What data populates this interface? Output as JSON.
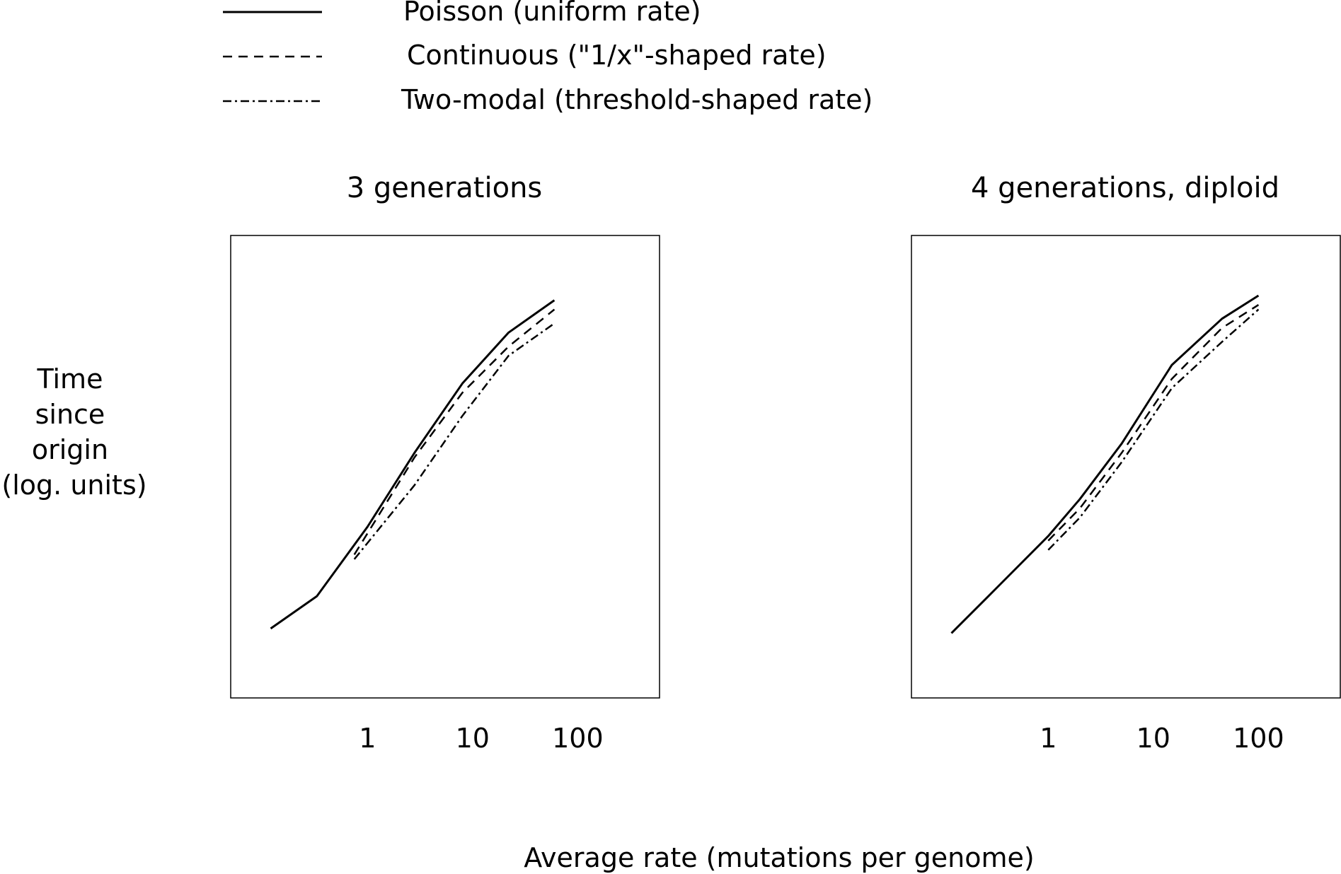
{
  "legend": [
    {
      "label": "Poisson (uniform rate)",
      "style": "solid"
    },
    {
      "label": "Continuous (\"1/x\"-shaped rate)",
      "style": "dashed"
    },
    {
      "label": "Two-modal (threshold-shaped rate)",
      "style": "dashdot"
    }
  ],
  "ylabel_lines": [
    "Time",
    "since",
    "origin",
    "(log. units)"
  ],
  "xlabel": "Average rate (mutations per genome)",
  "line_color": "#000000",
  "chart_data": [
    {
      "type": "line",
      "title": "3 generations",
      "x_scale": "log",
      "xlim": [
        0.05,
        600
      ],
      "ylim": [
        0,
        1
      ],
      "xticks": [
        1,
        10,
        100
      ],
      "xtick_labels": [
        "1",
        "10",
        "100"
      ],
      "yticks": [],
      "grid": false,
      "legend_placement": "top",
      "series": [
        {
          "name": "Poisson (uniform rate)",
          "style": "solid",
          "x": [
            0.12,
            0.33,
            1.0,
            2.8,
            8.0,
            22,
            60
          ],
          "y": [
            0.15,
            0.22,
            0.37,
            0.53,
            0.68,
            0.79,
            0.86
          ]
        },
        {
          "name": "Continuous (\"1/x\"-shaped rate)",
          "style": "dashed",
          "x": [
            0.75,
            2.8,
            8.0,
            22,
            60
          ],
          "y": [
            0.31,
            0.52,
            0.66,
            0.76,
            0.84
          ]
        },
        {
          "name": "Two-modal (threshold-shaped rate)",
          "style": "dashdot",
          "x": [
            0.75,
            2.8,
            8.0,
            22,
            60
          ],
          "y": [
            0.3,
            0.46,
            0.61,
            0.74,
            0.81
          ]
        }
      ]
    },
    {
      "type": "line",
      "title": "4 generations, diploid",
      "x_scale": "log",
      "xlim": [
        0.05,
        600
      ],
      "ylim": [
        0,
        1
      ],
      "xticks": [
        1,
        10,
        100
      ],
      "xtick_labels": [
        "1",
        "10",
        "100"
      ],
      "yticks": [],
      "grid": false,
      "legend_placement": "top",
      "series": [
        {
          "name": "Poisson (uniform rate)",
          "style": "solid",
          "x": [
            0.12,
            0.33,
            1.0,
            2.0,
            5.0,
            15,
            45,
            100
          ],
          "y": [
            0.14,
            0.24,
            0.35,
            0.43,
            0.55,
            0.72,
            0.82,
            0.87
          ]
        },
        {
          "name": "Continuous (\"1/x\"-shaped rate)",
          "style": "dashed",
          "x": [
            1.0,
            2.0,
            5.0,
            15,
            45,
            100
          ],
          "y": [
            0.34,
            0.41,
            0.53,
            0.69,
            0.8,
            0.85
          ]
        },
        {
          "name": "Two-modal (threshold-shaped rate)",
          "style": "dashdot",
          "x": [
            1.0,
            2.0,
            5.0,
            15,
            45,
            100
          ],
          "y": [
            0.32,
            0.39,
            0.51,
            0.67,
            0.77,
            0.84
          ]
        }
      ]
    }
  ]
}
